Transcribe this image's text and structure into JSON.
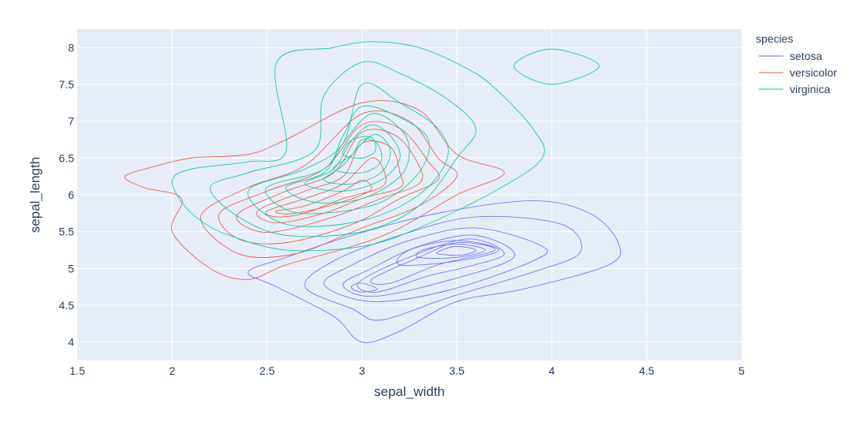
{
  "chart_data": {
    "type": "density_contour",
    "title": "",
    "xlabel": "sepal_width",
    "ylabel": "sepal_length",
    "xlim": [
      1.5,
      5
    ],
    "ylim": [
      3.75,
      8.25
    ],
    "x_ticks": [
      "1.5",
      "2",
      "2.5",
      "3",
      "3.5",
      "4",
      "4.5",
      "5"
    ],
    "y_ticks": [
      "4",
      "4.5",
      "5",
      "5.5",
      "6",
      "6.5",
      "7",
      "7.5",
      "8"
    ],
    "grid": true,
    "legend_title": "species",
    "legend_position": "top-right",
    "series": [
      {
        "name": "setosa",
        "color": "#636efa",
        "contours": [
          [
            [
              2.55,
              4.75
            ],
            [
              2.85,
              4.35
            ],
            [
              3.0,
              4.0
            ],
            [
              3.2,
              4.15
            ],
            [
              3.5,
              4.55
            ],
            [
              3.85,
              4.72
            ],
            [
              4.3,
              5.05
            ],
            [
              4.35,
              5.35
            ],
            [
              4.2,
              5.75
            ],
            [
              3.9,
              5.92
            ],
            [
              3.4,
              5.75
            ],
            [
              2.95,
              5.45
            ],
            [
              2.6,
              5.15
            ],
            [
              2.4,
              4.95
            ]
          ],
          [
            [
              2.7,
              4.75
            ],
            [
              2.95,
              4.45
            ],
            [
              3.1,
              4.3
            ],
            [
              3.45,
              4.6
            ],
            [
              3.9,
              4.95
            ],
            [
              4.15,
              5.22
            ],
            [
              4.05,
              5.6
            ],
            [
              3.6,
              5.7
            ],
            [
              3.2,
              5.45
            ],
            [
              2.85,
              5.1
            ]
          ],
          [
            [
              2.8,
              4.78
            ],
            [
              3.05,
              4.55
            ],
            [
              3.45,
              4.7
            ],
            [
              3.9,
              5.1
            ],
            [
              3.95,
              5.3
            ],
            [
              3.6,
              5.55
            ],
            [
              3.25,
              5.38
            ],
            [
              2.95,
              5.05
            ]
          ],
          [
            [
              2.9,
              4.78
            ],
            [
              3.05,
              4.62
            ],
            [
              3.4,
              4.8
            ],
            [
              3.8,
              5.15
            ],
            [
              3.6,
              5.45
            ],
            [
              3.3,
              5.3
            ],
            [
              3.05,
              5.0
            ]
          ],
          [
            [
              2.98,
              4.8
            ],
            [
              3.08,
              4.68
            ],
            [
              3.35,
              4.9
            ],
            [
              3.55,
              5.02
            ],
            [
              3.75,
              5.2
            ],
            [
              3.55,
              5.4
            ],
            [
              3.2,
              5.1
            ]
          ],
          [
            [
              3.05,
              4.85
            ],
            [
              3.15,
              4.8
            ],
            [
              3.4,
              5.05
            ],
            [
              3.7,
              5.25
            ],
            [
              3.5,
              5.35
            ],
            [
              3.3,
              5.15
            ]
          ],
          [
            [
              3.2,
              5.05
            ],
            [
              3.5,
              5.1
            ],
            [
              3.72,
              5.25
            ],
            [
              3.5,
              5.38
            ],
            [
              3.25,
              5.25
            ]
          ],
          [
            [
              3.3,
              5.15
            ],
            [
              3.5,
              5.15
            ],
            [
              3.65,
              5.25
            ],
            [
              3.5,
              5.33
            ],
            [
              3.32,
              5.25
            ]
          ],
          [
            [
              3.4,
              5.2
            ],
            [
              3.52,
              5.18
            ],
            [
              3.6,
              5.25
            ],
            [
              3.5,
              5.3
            ],
            [
              3.42,
              5.25
            ]
          ],
          [
            [
              2.95,
              4.72
            ],
            [
              3.0,
              4.68
            ],
            [
              3.08,
              4.72
            ],
            [
              3.0,
              4.8
            ],
            [
              2.95,
              4.77
            ]
          ]
        ]
      },
      {
        "name": "versicolor",
        "color": "#ef553b",
        "contours": [
          [
            [
              1.75,
              6.25
            ],
            [
              1.9,
              6.38
            ],
            [
              2.1,
              6.5
            ],
            [
              2.4,
              6.55
            ],
            [
              2.6,
              6.75
            ],
            [
              3.0,
              7.25
            ],
            [
              3.3,
              7.15
            ],
            [
              3.5,
              6.55
            ],
            [
              3.75,
              6.3
            ],
            [
              3.5,
              6.0
            ],
            [
              3.2,
              5.55
            ],
            [
              2.95,
              5.3
            ],
            [
              2.6,
              5.05
            ],
            [
              2.4,
              4.85
            ],
            [
              2.2,
              5.0
            ],
            [
              2.0,
              5.5
            ],
            [
              2.05,
              5.95
            ],
            [
              1.85,
              6.1
            ]
          ],
          [
            [
              2.15,
              5.7
            ],
            [
              2.4,
              6.1
            ],
            [
              2.7,
              6.4
            ],
            [
              3.0,
              7.1
            ],
            [
              3.25,
              7.0
            ],
            [
              3.4,
              6.5
            ],
            [
              3.5,
              6.25
            ],
            [
              3.3,
              5.85
            ],
            [
              3.0,
              5.55
            ],
            [
              2.65,
              5.2
            ],
            [
              2.35,
              5.2
            ]
          ],
          [
            [
              2.25,
              5.75
            ],
            [
              2.5,
              6.05
            ],
            [
              2.8,
              6.35
            ],
            [
              3.0,
              6.95
            ],
            [
              3.2,
              6.9
            ],
            [
              3.35,
              6.45
            ],
            [
              3.4,
              6.2
            ],
            [
              3.2,
              5.95
            ],
            [
              2.95,
              5.6
            ],
            [
              2.6,
              5.35
            ],
            [
              2.35,
              5.4
            ]
          ],
          [
            [
              2.35,
              5.75
            ],
            [
              2.6,
              6.05
            ],
            [
              2.85,
              6.3
            ],
            [
              3.0,
              6.85
            ],
            [
              3.18,
              6.8
            ],
            [
              3.3,
              6.4
            ],
            [
              3.3,
              6.15
            ],
            [
              3.1,
              5.95
            ],
            [
              2.85,
              5.7
            ],
            [
              2.55,
              5.5
            ],
            [
              2.4,
              5.55
            ]
          ],
          [
            [
              2.45,
              5.78
            ],
            [
              2.7,
              6.05
            ],
            [
              2.9,
              6.25
            ],
            [
              3.0,
              6.7
            ],
            [
              3.15,
              6.65
            ],
            [
              3.2,
              6.3
            ],
            [
              3.2,
              6.1
            ],
            [
              3.0,
              5.95
            ],
            [
              2.8,
              5.75
            ],
            [
              2.55,
              5.62
            ]
          ],
          [
            [
              2.5,
              5.78
            ],
            [
              2.7,
              5.95
            ],
            [
              2.9,
              6.15
            ],
            [
              3.05,
              6.5
            ],
            [
              3.12,
              6.3
            ],
            [
              3.1,
              6.1
            ],
            [
              2.9,
              5.95
            ],
            [
              2.7,
              5.75
            ],
            [
              2.55,
              5.7
            ]
          ],
          [
            [
              2.55,
              5.78
            ],
            [
              2.7,
              5.85
            ],
            [
              2.9,
              6.05
            ],
            [
              3.0,
              6.2
            ],
            [
              3.05,
              6.08
            ],
            [
              2.95,
              5.95
            ],
            [
              2.75,
              5.8
            ],
            [
              2.6,
              5.74
            ]
          ]
        ]
      },
      {
        "name": "virginica",
        "color": "#00cc96",
        "contours": [
          [
            [
              2.0,
              6.2
            ],
            [
              2.1,
              6.35
            ],
            [
              2.4,
              6.45
            ],
            [
              2.6,
              6.6
            ],
            [
              2.55,
              7.8
            ],
            [
              2.85,
              8.0
            ],
            [
              3.05,
              8.08
            ],
            [
              3.3,
              8.0
            ],
            [
              3.55,
              7.72
            ],
            [
              3.7,
              7.45
            ],
            [
              3.9,
              6.9
            ],
            [
              3.95,
              6.5
            ],
            [
              3.7,
              6.05
            ],
            [
              3.3,
              5.55
            ],
            [
              3.0,
              5.3
            ],
            [
              2.6,
              5.25
            ],
            [
              2.3,
              5.45
            ],
            [
              2.15,
              5.65
            ],
            [
              2.05,
              5.9
            ]
          ],
          [
            [
              2.2,
              6.1
            ],
            [
              2.4,
              6.3
            ],
            [
              2.75,
              6.6
            ],
            [
              2.8,
              7.35
            ],
            [
              3.0,
              7.8
            ],
            [
              3.2,
              7.65
            ],
            [
              3.45,
              7.3
            ],
            [
              3.6,
              6.9
            ],
            [
              3.5,
              6.5
            ],
            [
              3.3,
              5.85
            ],
            [
              3.0,
              5.5
            ],
            [
              2.6,
              5.45
            ],
            [
              2.35,
              5.7
            ]
          ],
          [
            [
              2.4,
              6.05
            ],
            [
              2.7,
              6.35
            ],
            [
              2.9,
              6.7
            ],
            [
              3.0,
              7.5
            ],
            [
              3.2,
              7.25
            ],
            [
              3.4,
              6.9
            ],
            [
              3.45,
              6.5
            ],
            [
              3.3,
              6.0
            ],
            [
              3.0,
              5.65
            ],
            [
              2.6,
              5.6
            ]
          ],
          [
            [
              2.5,
              6.1
            ],
            [
              2.8,
              6.35
            ],
            [
              2.9,
              6.8
            ],
            [
              3.0,
              7.2
            ],
            [
              3.2,
              7.05
            ],
            [
              3.35,
              6.75
            ],
            [
              3.3,
              6.3
            ],
            [
              3.1,
              5.9
            ],
            [
              2.8,
              5.75
            ],
            [
              2.6,
              5.8
            ]
          ],
          [
            [
              2.6,
              6.1
            ],
            [
              2.8,
              6.3
            ],
            [
              2.9,
              6.7
            ],
            [
              3.05,
              7.1
            ],
            [
              3.2,
              6.9
            ],
            [
              3.25,
              6.6
            ],
            [
              3.2,
              6.25
            ],
            [
              3.0,
              5.95
            ],
            [
              2.75,
              5.9
            ]
          ],
          [
            [
              2.7,
              6.15
            ],
            [
              2.85,
              6.35
            ],
            [
              2.95,
              6.75
            ],
            [
              3.05,
              6.95
            ],
            [
              3.15,
              6.8
            ],
            [
              3.2,
              6.5
            ],
            [
              3.1,
              6.2
            ],
            [
              2.9,
              6.05
            ]
          ],
          [
            [
              2.8,
              6.2
            ],
            [
              2.9,
              6.4
            ],
            [
              3.0,
              6.7
            ],
            [
              3.08,
              6.82
            ],
            [
              3.15,
              6.6
            ],
            [
              3.1,
              6.3
            ],
            [
              2.95,
              6.15
            ]
          ],
          [
            [
              2.85,
              6.35
            ],
            [
              2.95,
              6.55
            ],
            [
              3.0,
              6.75
            ],
            [
              3.08,
              6.7
            ],
            [
              3.1,
              6.45
            ],
            [
              3.0,
              6.3
            ]
          ],
          [
            [
              2.9,
              6.55
            ],
            [
              2.95,
              6.75
            ],
            [
              3.05,
              6.78
            ],
            [
              3.07,
              6.6
            ],
            [
              3.0,
              6.5
            ]
          ],
          [
            [
              3.8,
              7.75
            ],
            [
              4.0,
              7.98
            ],
            [
              4.25,
              7.75
            ],
            [
              4.0,
              7.5
            ]
          ]
        ]
      }
    ]
  }
}
